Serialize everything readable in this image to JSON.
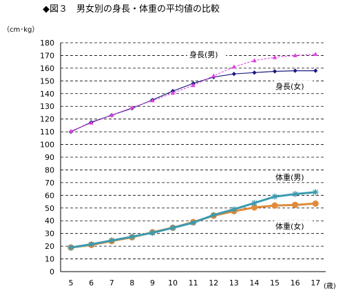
{
  "chart_data": {
    "type": "line",
    "title": "◆図３　男女別の身長・体重の平均値の比較",
    "ylabel": "（cm･kg）",
    "xlabel": "(歳)",
    "ylim": [
      0,
      180
    ],
    "ytick_step": 10,
    "grid": "horizontal-dashed",
    "x": [
      5,
      6,
      7,
      8,
      9,
      10,
      11,
      12,
      13,
      14,
      15,
      16,
      17
    ],
    "series": [
      {
        "name": "身長(男)",
        "color": "#e040e0",
        "style": "dashed",
        "marker": "triangle",
        "values": [
          110.5,
          117.0,
          123.0,
          129.0,
          134.5,
          140.5,
          146.5,
          154.0,
          161.0,
          166.0,
          168.5,
          170.0,
          171.0
        ]
      },
      {
        "name": "身長(女)",
        "color": "#1a1a80",
        "style": "solid",
        "marker": "diamond",
        "values": [
          110.0,
          117.5,
          123.0,
          128.5,
          135.0,
          142.0,
          148.0,
          153.0,
          155.5,
          156.5,
          157.5,
          158.0,
          158.0
        ]
      },
      {
        "name": "体重(男)",
        "color": "#3a9ab0",
        "style": "solid-thick",
        "marker": "star",
        "values": [
          19.0,
          21.5,
          24.5,
          27.5,
          30.5,
          34.5,
          38.5,
          44.5,
          49.0,
          54.0,
          59.0,
          61.0,
          62.5
        ]
      },
      {
        "name": "体重(女)",
        "color": "#e08a3a",
        "style": "solid-thick",
        "marker": "circle",
        "values": [
          19.0,
          21.0,
          24.0,
          27.0,
          31.0,
          34.5,
          39.0,
          44.0,
          47.5,
          50.5,
          52.0,
          52.5,
          53.5
        ]
      }
    ],
    "annotations": [
      "身長(男)",
      "身長(女)",
      "体重(男)",
      "体重(女)"
    ]
  }
}
